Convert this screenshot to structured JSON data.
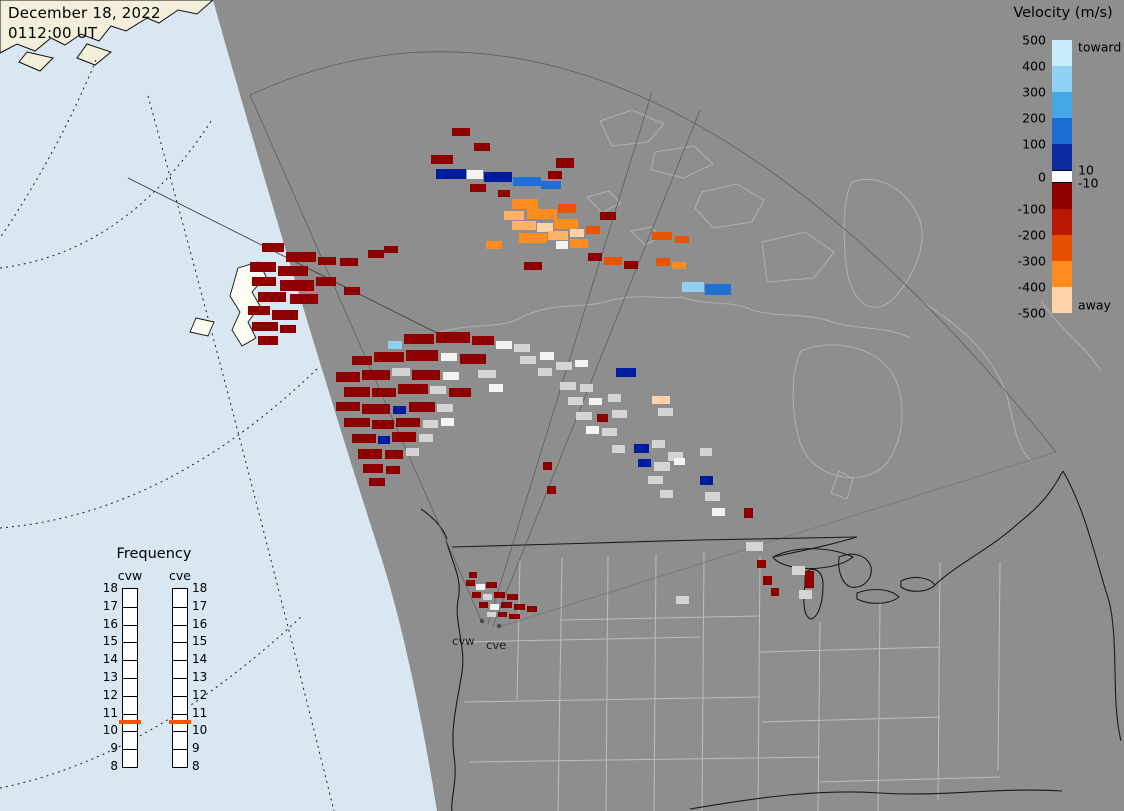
{
  "header": {
    "date": "December 18, 2022",
    "time": "0112:00 UT"
  },
  "velocity_legend": {
    "title": "Velocity (m/s)",
    "toward_label": "toward",
    "away_label": "away",
    "tick_labels": [
      "500",
      "400",
      "300",
      "200",
      "100",
      "0",
      "-100",
      "-200",
      "-300",
      "-400",
      "-500"
    ],
    "near_zero_upper": "10",
    "near_zero_lower": "-10",
    "toward_colors": [
      "#c9ecfc",
      "#8fd2f4",
      "#46a7e6",
      "#1b6ed0",
      "#0b2da0"
    ],
    "away_colors": [
      "#8e0000",
      "#b81800",
      "#e44f00",
      "#ff8c1e",
      "#ffd2a8"
    ]
  },
  "frequency_legend": {
    "title": "Frequency",
    "left_column_label": "cvw",
    "right_column_label": "cve",
    "tick_labels": [
      "18",
      "17",
      "16",
      "15",
      "14",
      "13",
      "12",
      "11",
      "10",
      "9",
      "8"
    ],
    "marker_color": "#ff5200",
    "marker_between": [
      "11",
      "10"
    ]
  },
  "radar_sites": {
    "west_label": "cvw",
    "east_label": "cve"
  },
  "map_colors": {
    "ocean": "#d8e7f2",
    "land": "#f4efda",
    "fov_fill": "#8e8e8e",
    "coast_line": "#1b1b1b",
    "map_line": "#b2b2b2",
    "state_line": "#bdbdbd"
  },
  "palette": {
    "dr": "#8e0000",
    "rd": "#c01000",
    "or": "#e55500",
    "o2": "#ff8c1e",
    "lo": "#ffb164",
    "pe": "#ffd2a8",
    "wh": "#f3f3f3",
    "gy": "#d4d4d4",
    "nv": "#001d9e",
    "bl": "#1f6fd4",
    "lb": "#8fd0f0"
  },
  "chart_data": {
    "type": "scatter",
    "cells": [
      [
        "dr",
        431,
        155,
        22,
        9
      ],
      [
        "dr",
        452,
        128,
        18,
        8
      ],
      [
        "dr",
        474,
        143,
        16,
        8
      ],
      [
        "nv",
        436,
        169,
        30,
        10
      ],
      [
        "wh",
        467,
        170,
        16,
        9
      ],
      [
        "nv",
        484,
        172,
        28,
        10
      ],
      [
        "bl",
        513,
        177,
        28,
        9
      ],
      [
        "bl",
        541,
        181,
        20,
        8
      ],
      [
        "dr",
        470,
        184,
        16,
        8
      ],
      [
        "dr",
        556,
        158,
        18,
        10
      ],
      [
        "dr",
        548,
        171,
        14,
        8
      ],
      [
        "dr",
        498,
        190,
        12,
        7
      ],
      [
        "o2",
        512,
        199,
        26,
        10
      ],
      [
        "lo",
        504,
        211,
        20,
        9
      ],
      [
        "o2",
        527,
        209,
        30,
        10
      ],
      [
        "or",
        558,
        204,
        18,
        9
      ],
      [
        "lo",
        512,
        221,
        24,
        9
      ],
      [
        "pe",
        537,
        223,
        16,
        9
      ],
      [
        "o2",
        554,
        219,
        24,
        10
      ],
      [
        "dr",
        600,
        212,
        16,
        8
      ],
      [
        "o2",
        519,
        233,
        28,
        10
      ],
      [
        "lo",
        548,
        231,
        20,
        9
      ],
      [
        "pe",
        570,
        229,
        14,
        8
      ],
      [
        "or",
        586,
        226,
        14,
        8
      ],
      [
        "wh",
        556,
        241,
        12,
        8
      ],
      [
        "o2",
        570,
        239,
        18,
        9
      ],
      [
        "o2",
        486,
        241,
        16,
        8
      ],
      [
        "dr",
        524,
        262,
        18,
        8
      ],
      [
        "dr",
        588,
        253,
        14,
        8
      ],
      [
        "or",
        604,
        257,
        18,
        8
      ],
      [
        "dr",
        624,
        261,
        14,
        8
      ],
      [
        "or",
        652,
        232,
        20,
        8
      ],
      [
        "or",
        675,
        236,
        14,
        7
      ],
      [
        "or",
        656,
        258,
        14,
        8
      ],
      [
        "o2",
        672,
        262,
        14,
        7
      ],
      [
        "lb",
        682,
        282,
        22,
        10
      ],
      [
        "bl",
        705,
        284,
        26,
        11
      ],
      [
        "dr",
        262,
        243,
        22,
        9
      ],
      [
        "dr",
        286,
        252,
        30,
        10
      ],
      [
        "dr",
        318,
        257,
        18,
        8
      ],
      [
        "dr",
        250,
        262,
        26,
        10
      ],
      [
        "dr",
        278,
        266,
        30,
        10
      ],
      [
        "dr",
        340,
        258,
        18,
        8
      ],
      [
        "dr",
        252,
        277,
        24,
        9
      ],
      [
        "dr",
        280,
        280,
        34,
        11
      ],
      [
        "dr",
        316,
        277,
        20,
        9
      ],
      [
        "dr",
        368,
        250,
        16,
        8
      ],
      [
        "dr",
        258,
        292,
        28,
        10
      ],
      [
        "dr",
        290,
        294,
        28,
        10
      ],
      [
        "dr",
        344,
        287,
        16,
        8
      ],
      [
        "dr",
        248,
        306,
        22,
        9
      ],
      [
        "dr",
        272,
        310,
        26,
        10
      ],
      [
        "dr",
        252,
        322,
        26,
        9
      ],
      [
        "dr",
        280,
        325,
        16,
        8
      ],
      [
        "dr",
        258,
        336,
        20,
        9
      ],
      [
        "dr",
        384,
        246,
        14,
        7
      ],
      [
        "lb",
        388,
        341,
        14,
        8
      ],
      [
        "dr",
        404,
        334,
        30,
        10
      ],
      [
        "dr",
        436,
        332,
        34,
        11
      ],
      [
        "dr",
        472,
        336,
        22,
        9
      ],
      [
        "wh",
        496,
        341,
        16,
        8
      ],
      [
        "gy",
        514,
        344,
        16,
        8
      ],
      [
        "dr",
        352,
        356,
        20,
        9
      ],
      [
        "dr",
        374,
        352,
        30,
        10
      ],
      [
        "dr",
        406,
        350,
        32,
        11
      ],
      [
        "wh",
        441,
        353,
        16,
        8
      ],
      [
        "dr",
        460,
        354,
        26,
        10
      ],
      [
        "gy",
        520,
        356,
        16,
        8
      ],
      [
        "wh",
        540,
        352,
        14,
        8
      ],
      [
        "dr",
        336,
        372,
        24,
        10
      ],
      [
        "dr",
        362,
        370,
        28,
        10
      ],
      [
        "gy",
        392,
        368,
        18,
        8
      ],
      [
        "dr",
        412,
        370,
        28,
        10
      ],
      [
        "wh",
        443,
        372,
        16,
        8
      ],
      [
        "gy",
        478,
        370,
        18,
        8
      ],
      [
        "gy",
        538,
        368,
        14,
        8
      ],
      [
        "dr",
        344,
        387,
        26,
        10
      ],
      [
        "dr",
        372,
        388,
        24,
        9
      ],
      [
        "dr",
        398,
        384,
        30,
        10
      ],
      [
        "gy",
        430,
        386,
        16,
        8
      ],
      [
        "dr",
        449,
        388,
        22,
        9
      ],
      [
        "wh",
        489,
        384,
        14,
        8
      ],
      [
        "dr",
        336,
        402,
        24,
        9
      ],
      [
        "dr",
        362,
        404,
        28,
        10
      ],
      [
        "nv",
        393,
        406,
        13,
        8
      ],
      [
        "dr",
        409,
        402,
        26,
        10
      ],
      [
        "gy",
        437,
        404,
        16,
        8
      ],
      [
        "dr",
        344,
        418,
        26,
        9
      ],
      [
        "dr",
        372,
        420,
        22,
        9
      ],
      [
        "dr",
        396,
        418,
        24,
        9
      ],
      [
        "gy",
        423,
        420,
        15,
        8
      ],
      [
        "wh",
        441,
        418,
        13,
        8
      ],
      [
        "dr",
        352,
        434,
        24,
        9
      ],
      [
        "nv",
        378,
        436,
        12,
        8
      ],
      [
        "dr",
        392,
        432,
        24,
        10
      ],
      [
        "gy",
        419,
        434,
        14,
        8
      ],
      [
        "dr",
        358,
        449,
        24,
        10
      ],
      [
        "dr",
        385,
        450,
        18,
        9
      ],
      [
        "gy",
        406,
        448,
        13,
        8
      ],
      [
        "dr",
        363,
        464,
        20,
        9
      ],
      [
        "dr",
        386,
        466,
        14,
        8
      ],
      [
        "dr",
        369,
        478,
        16,
        8
      ],
      [
        "gy",
        556,
        362,
        16,
        8
      ],
      [
        "wh",
        575,
        360,
        13,
        7
      ],
      [
        "nv",
        616,
        368,
        20,
        9
      ],
      [
        "gy",
        560,
        382,
        16,
        8
      ],
      [
        "gy",
        580,
        384,
        13,
        8
      ],
      [
        "pe",
        652,
        396,
        18,
        8
      ],
      [
        "gy",
        568,
        397,
        15,
        8
      ],
      [
        "wh",
        589,
        398,
        13,
        7
      ],
      [
        "gy",
        608,
        394,
        13,
        8
      ],
      [
        "gy",
        576,
        412,
        16,
        8
      ],
      [
        "dr",
        597,
        414,
        11,
        8
      ],
      [
        "gy",
        612,
        410,
        15,
        8
      ],
      [
        "gy",
        658,
        408,
        15,
        8
      ],
      [
        "wh",
        586,
        426,
        13,
        8
      ],
      [
        "gy",
        602,
        428,
        15,
        8
      ],
      [
        "nv",
        634,
        444,
        15,
        9
      ],
      [
        "gy",
        652,
        440,
        13,
        8
      ],
      [
        "gy",
        612,
        445,
        13,
        8
      ],
      [
        "gy",
        668,
        452,
        15,
        9
      ],
      [
        "nv",
        638,
        459,
        13,
        8
      ],
      [
        "gy",
        654,
        462,
        16,
        9
      ],
      [
        "wh",
        674,
        458,
        11,
        7
      ],
      [
        "gy",
        648,
        476,
        15,
        8
      ],
      [
        "nv",
        700,
        476,
        13,
        9
      ],
      [
        "gy",
        660,
        490,
        13,
        8
      ],
      [
        "gy",
        705,
        492,
        15,
        9
      ],
      [
        "wh",
        712,
        508,
        13,
        8
      ],
      [
        "dr",
        547,
        486,
        9,
        8
      ],
      [
        "dr",
        543,
        462,
        9,
        8
      ],
      [
        "gy",
        700,
        448,
        12,
        8
      ],
      [
        "dr",
        744,
        508,
        9,
        10
      ],
      [
        "gy",
        746,
        542,
        17,
        9
      ],
      [
        "dr",
        757,
        560,
        9,
        8
      ],
      [
        "dr",
        763,
        576,
        9,
        9
      ],
      [
        "dr",
        771,
        588,
        8,
        8
      ],
      [
        "gy",
        792,
        566,
        13,
        9
      ],
      [
        "dr",
        805,
        571,
        9,
        17
      ],
      [
        "gy",
        799,
        590,
        13,
        9
      ],
      [
        "gy",
        676,
        596,
        13,
        8
      ],
      [
        "dr",
        469,
        572,
        8,
        6
      ],
      [
        "dr",
        466,
        580,
        9,
        6
      ],
      [
        "wh",
        476,
        584,
        9,
        6
      ],
      [
        "dr",
        486,
        582,
        11,
        6
      ],
      [
        "dr",
        472,
        592,
        9,
        6
      ],
      [
        "gy",
        483,
        594,
        9,
        6
      ],
      [
        "dr",
        494,
        592,
        11,
        6
      ],
      [
        "dr",
        507,
        594,
        11,
        6
      ],
      [
        "dr",
        479,
        602,
        9,
        6
      ],
      [
        "wh",
        490,
        604,
        9,
        6
      ],
      [
        "dr",
        501,
        602,
        11,
        6
      ],
      [
        "dr",
        514,
        604,
        11,
        6
      ],
      [
        "dr",
        527,
        606,
        10,
        6
      ],
      [
        "gy",
        487,
        612,
        9,
        5
      ],
      [
        "dr",
        498,
        612,
        9,
        5
      ],
      [
        "dr",
        509,
        614,
        11,
        5
      ]
    ]
  }
}
